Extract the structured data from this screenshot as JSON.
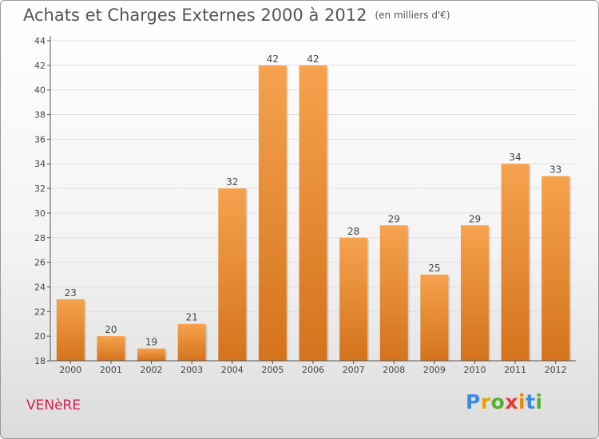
{
  "chart_data": {
    "type": "bar",
    "title": "Achats et Charges Externes 2000 à 2012",
    "subtitle": "(en milliers d'€)",
    "categories": [
      "2000",
      "2001",
      "2002",
      "2003",
      "2004",
      "2005",
      "2006",
      "2007",
      "2008",
      "2009",
      "2010",
      "2011",
      "2012"
    ],
    "values": [
      23,
      20,
      19,
      21,
      32,
      42,
      42,
      28,
      29,
      25,
      29,
      34,
      33
    ],
    "ylim": [
      18,
      44
    ],
    "yticks": [
      18,
      20,
      22,
      24,
      26,
      28,
      30,
      32,
      34,
      36,
      38,
      40,
      42,
      44
    ],
    "grid": true,
    "bar_color_top": "#f6a24e",
    "bar_color_bottom": "#d4731c"
  },
  "footer": {
    "commune": "VENèRE",
    "logo": "Proxiti"
  }
}
